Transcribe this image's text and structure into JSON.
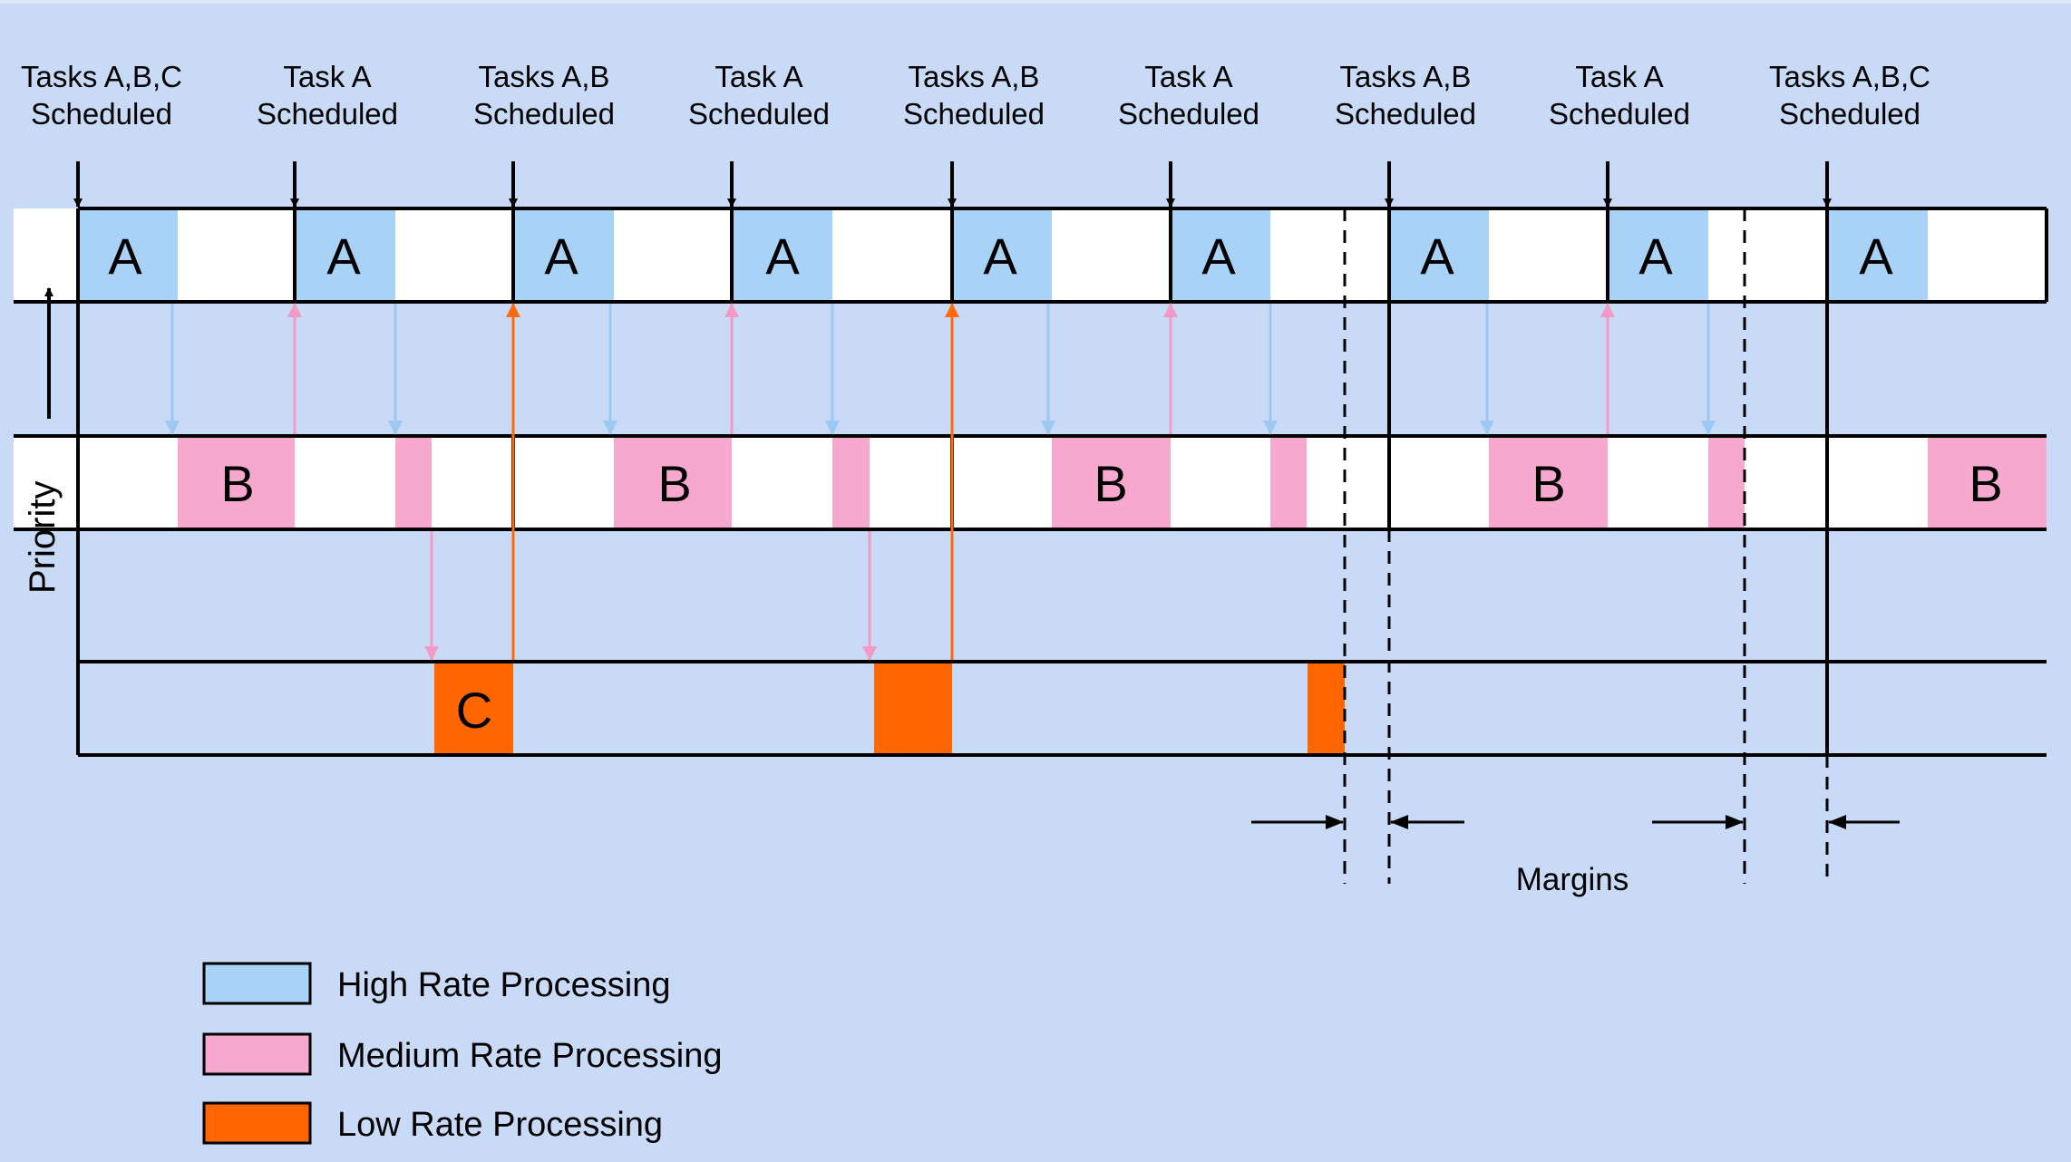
{
  "schedule_events": [
    {
      "line1": "Tasks A,B,C",
      "line2": "Scheduled"
    },
    {
      "line1": "Task A",
      "line2": "Scheduled"
    },
    {
      "line1": "Tasks A,B",
      "line2": "Scheduled"
    },
    {
      "line1": "Task A",
      "line2": "Scheduled"
    },
    {
      "line1": "Tasks A,B",
      "line2": "Scheduled"
    },
    {
      "line1": "Task A",
      "line2": "Scheduled"
    },
    {
      "line1": "Tasks A,B",
      "line2": "Scheduled"
    },
    {
      "line1": "Task A",
      "line2": "Scheduled"
    },
    {
      "line1": "Tasks A,B,C",
      "line2": "Scheduled"
    }
  ],
  "lanes": {
    "high": {
      "block_label": "A"
    },
    "medium": {
      "block_label": "B"
    },
    "low": {
      "block_label": "C"
    }
  },
  "axis": {
    "priority_label": "Priority"
  },
  "margins": {
    "label": "Margins"
  },
  "legend": [
    {
      "label": "High Rate Processing",
      "color": "#a9d2f7"
    },
    {
      "label": "Medium Rate Processing",
      "color": "#f7a8cf"
    },
    {
      "label": "Low Rate Processing",
      "color": "#ff6600"
    }
  ],
  "colors": {
    "high_block": "#a9d2f7",
    "medium_block": "#f7a8cf",
    "low_block": "#ff6600",
    "background": "#c9daf7",
    "lane_fill": "#ffffff",
    "high_arrow": "#9cc8f2",
    "medium_arrow": "#f29bc6",
    "low_arrow": "#ff6a0a"
  }
}
